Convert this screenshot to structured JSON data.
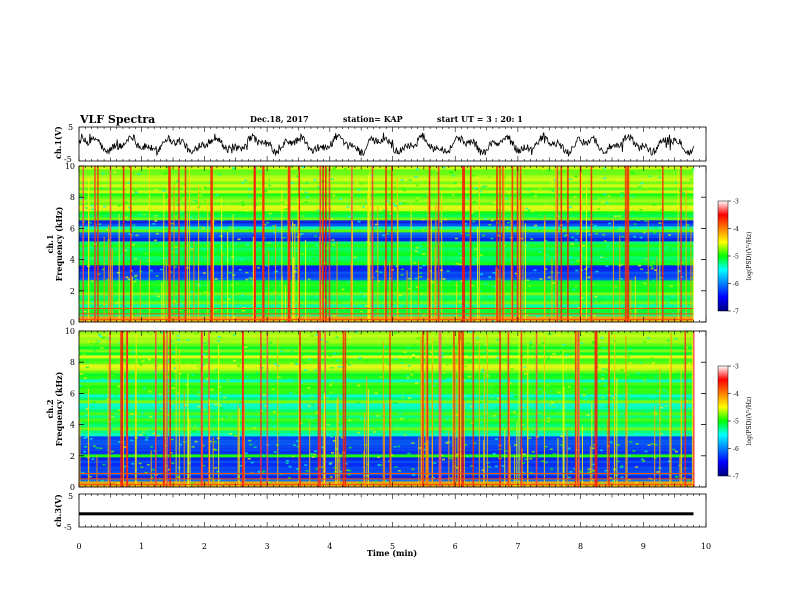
{
  "header": {
    "title": "VLF Spectra",
    "date": "Dec.18, 2017",
    "station": "station= KAP",
    "start": "start UT =  3 : 20: 1"
  },
  "chart_data": {
    "type": "heatmap",
    "title": "VLF Spectra",
    "xlabel": "Time (min)",
    "xlim": [
      0,
      10
    ],
    "x_ticks": [
      "0",
      "1",
      "2",
      "3",
      "4",
      "5",
      "6",
      "7",
      "8",
      "9",
      "10"
    ],
    "panels": [
      {
        "id": "ch1-waveform",
        "type": "line",
        "ylabel": "ch.1(V)",
        "ylim": [
          -5,
          5
        ],
        "y_ticks": [
          "5",
          "-5"
        ],
        "x_end": 9.8
      },
      {
        "id": "ch1-spectrogram",
        "type": "heatmap",
        "ylabel_line1": "ch.1",
        "ylabel_line2": "Frequency (kHz)",
        "ylim": [
          0,
          10
        ],
        "y_ticks": [
          "0",
          "2",
          "4",
          "6",
          "8",
          "10"
        ],
        "x_end": 9.8,
        "colorbar": {
          "label": "log(PSD)(V²/Hz)",
          "range": [
            -7,
            -3
          ],
          "ticks": [
            "-3",
            "-4",
            "-5",
            "-6",
            "-7"
          ]
        },
        "dark_bands_khz": [
          [
            3.2,
            3.6
          ],
          [
            2.7,
            3.1
          ],
          [
            5.3,
            5.6
          ],
          [
            6.2,
            6.5
          ]
        ]
      },
      {
        "id": "ch2-spectrogram",
        "type": "heatmap",
        "ylabel_line1": "ch.2",
        "ylabel_line2": "Frequency (kHz)",
        "ylim": [
          0,
          10
        ],
        "y_ticks": [
          "0",
          "2",
          "4",
          "6",
          "8",
          "10"
        ],
        "x_end": 9.8,
        "colorbar": {
          "label": "log(PSD)(V²/Hz)",
          "range": [
            -7,
            -3
          ],
          "ticks": [
            "-3",
            "-4",
            "-5",
            "-6",
            "-7"
          ]
        },
        "dark_bands_khz": [
          [
            2.3,
            3.2
          ],
          [
            1.0,
            1.8
          ],
          [
            0.4,
            0.8
          ]
        ]
      },
      {
        "id": "ch3-waveform",
        "type": "line",
        "ylabel": "ch.3(V)",
        "ylim": [
          -5,
          5
        ],
        "y_ticks": [
          "5",
          "-5"
        ],
        "series_level_v": -1,
        "x_end": 9.8
      }
    ]
  }
}
